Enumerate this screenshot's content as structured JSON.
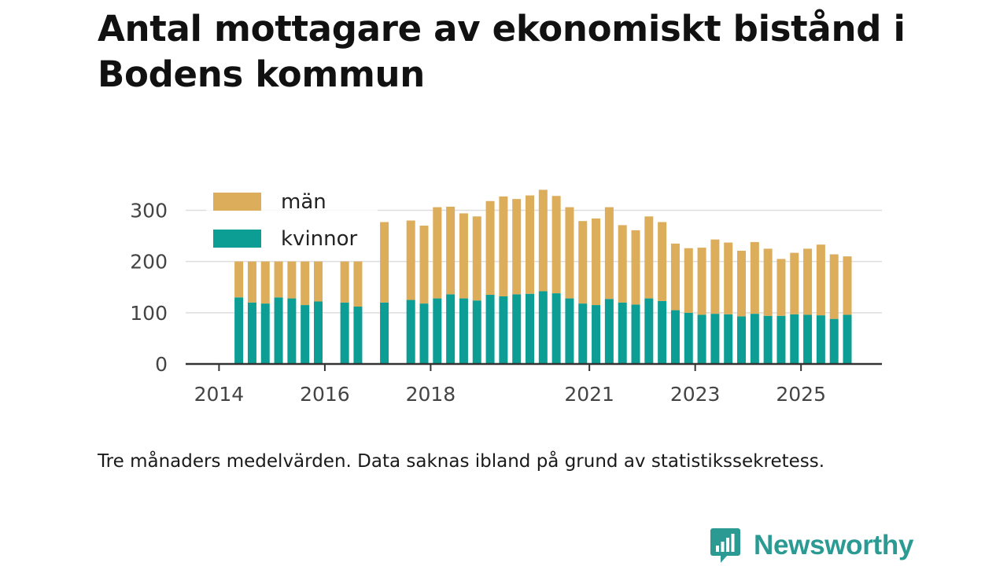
{
  "title": "Antal mottagare av ekonomiskt bistånd i Bodens kommun",
  "caption": "Tre månaders medelvärden. Data saknas ibland på grund av statistikssekretess.",
  "brand": {
    "name": "Newsworthy",
    "color": "#2a9a93"
  },
  "colors": {
    "women": "#0c9e95",
    "men": "#dcad5a",
    "grid": "#dddddd",
    "axis": "#333333",
    "label": "#444444"
  },
  "chart_data": {
    "type": "bar",
    "stacked": true,
    "ylim": [
      0,
      350
    ],
    "yticks": [
      0,
      100,
      200,
      300
    ],
    "xticks": [
      {
        "label": "2014",
        "q": 0
      },
      {
        "label": "2016",
        "q": 8
      },
      {
        "label": "2018",
        "q": 16
      },
      {
        "label": "2021",
        "q": 28
      },
      {
        "label": "2023",
        "q": 36
      },
      {
        "label": "2025",
        "q": 44
      }
    ],
    "legend": {
      "position": "top-left",
      "entries": [
        "män",
        "kvinnor"
      ]
    },
    "series": [
      {
        "name": "kvinnor",
        "color": "#0c9e95",
        "points": [
          [
            1.5,
            130
          ],
          [
            2.5,
            120
          ],
          [
            3.5,
            118
          ],
          [
            4.5,
            130
          ],
          [
            5.5,
            128
          ],
          [
            6.5,
            115
          ],
          [
            7.5,
            122
          ],
          [
            9.5,
            120
          ],
          [
            10.5,
            112
          ],
          [
            12.5,
            120
          ],
          [
            14.5,
            125
          ],
          [
            15.5,
            118
          ],
          [
            16.5,
            128
          ],
          [
            17.5,
            136
          ],
          [
            18.5,
            128
          ],
          [
            19.5,
            124
          ],
          [
            20.5,
            135
          ],
          [
            21.5,
            132
          ],
          [
            22.5,
            136
          ],
          [
            23.5,
            137
          ],
          [
            24.5,
            142
          ],
          [
            25.5,
            138
          ],
          [
            26.5,
            128
          ],
          [
            27.5,
            118
          ],
          [
            28.5,
            115
          ],
          [
            29.5,
            127
          ],
          [
            30.5,
            120
          ],
          [
            31.5,
            116
          ],
          [
            32.5,
            128
          ],
          [
            33.5,
            123
          ],
          [
            34.5,
            105
          ],
          [
            35.5,
            100
          ],
          [
            36.5,
            96
          ],
          [
            37.5,
            98
          ],
          [
            38.5,
            97
          ],
          [
            39.5,
            93
          ],
          [
            40.5,
            98
          ],
          [
            41.5,
            94
          ],
          [
            42.5,
            94
          ],
          [
            43.5,
            97
          ],
          [
            44.5,
            96
          ],
          [
            45.5,
            95
          ],
          [
            46.5,
            88
          ],
          [
            47.5,
            96
          ]
        ]
      },
      {
        "name": "män",
        "color": "#dcad5a",
        "points": [
          [
            1.5,
            70
          ],
          [
            2.5,
            80
          ],
          [
            3.5,
            82
          ],
          [
            4.5,
            70
          ],
          [
            5.5,
            72
          ],
          [
            6.5,
            85
          ],
          [
            7.5,
            78
          ],
          [
            9.5,
            80
          ],
          [
            10.5,
            88
          ],
          [
            12.5,
            157
          ],
          [
            14.5,
            155
          ],
          [
            15.5,
            152
          ],
          [
            16.5,
            178
          ],
          [
            17.5,
            171
          ],
          [
            18.5,
            166
          ],
          [
            19.5,
            164
          ],
          [
            20.5,
            183
          ],
          [
            21.5,
            195
          ],
          [
            22.5,
            186
          ],
          [
            23.5,
            192
          ],
          [
            24.5,
            198
          ],
          [
            25.5,
            190
          ],
          [
            26.5,
            178
          ],
          [
            27.5,
            161
          ],
          [
            28.5,
            169
          ],
          [
            29.5,
            179
          ],
          [
            30.5,
            151
          ],
          [
            31.5,
            145
          ],
          [
            32.5,
            160
          ],
          [
            33.5,
            154
          ],
          [
            34.5,
            130
          ],
          [
            35.5,
            126
          ],
          [
            36.5,
            131
          ],
          [
            37.5,
            145
          ],
          [
            38.5,
            140
          ],
          [
            39.5,
            128
          ],
          [
            40.5,
            140
          ],
          [
            41.5,
            131
          ],
          [
            42.5,
            111
          ],
          [
            43.5,
            120
          ],
          [
            44.5,
            129
          ],
          [
            45.5,
            138
          ],
          [
            46.5,
            126
          ],
          [
            47.5,
            114
          ]
        ]
      }
    ]
  }
}
